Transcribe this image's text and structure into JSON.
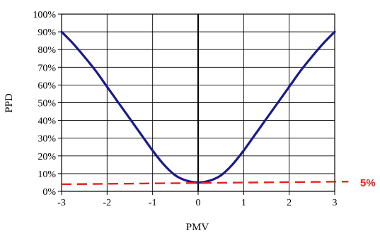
{
  "chart_data": {
    "type": "line",
    "title": "",
    "xlabel": "PMV",
    "ylabel": "PPD",
    "xlim": [
      -3,
      3
    ],
    "ylim": [
      0,
      100
    ],
    "x_ticks": [
      "-3",
      "-2",
      "-1",
      "0",
      "1",
      "2",
      "3"
    ],
    "y_ticks": [
      "0%",
      "10%",
      "20%",
      "30%",
      "40%",
      "50%",
      "60%",
      "70%",
      "80%",
      "90%",
      "100%"
    ],
    "grid": true,
    "series": [
      {
        "color": "#1a1a8c",
        "x": [
          -3,
          -2.75,
          -2.5,
          -2.25,
          -2,
          -1.75,
          -1.5,
          -1.25,
          -1,
          -0.75,
          -0.5,
          -0.25,
          0,
          0.25,
          0.5,
          0.75,
          1,
          1.25,
          1.5,
          1.75,
          2,
          2.25,
          2.5,
          2.75,
          3
        ],
        "y": [
          90,
          83.5,
          76,
          68,
          59,
          50,
          41,
          32,
          23,
          15,
          9,
          6,
          5,
          6,
          9,
          15,
          23,
          32,
          41,
          50,
          59,
          68,
          76,
          83.5,
          90
        ]
      }
    ],
    "reference_line": {
      "x": [
        -3,
        3.3
      ],
      "y": [
        4,
        5.5
      ],
      "color": "#e8201a",
      "label": "5%"
    }
  }
}
